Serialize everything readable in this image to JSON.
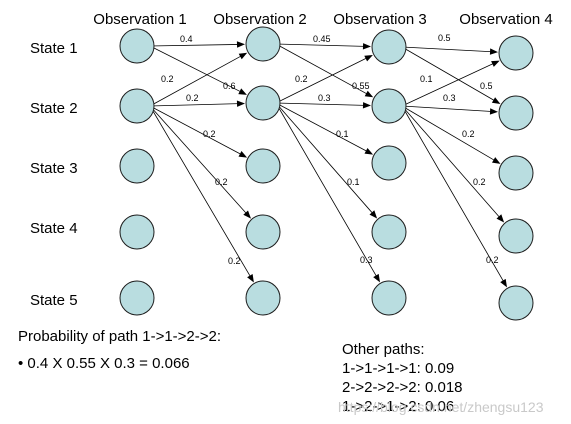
{
  "observations": [
    "Observation 1",
    "Observation 2",
    "Observation 3",
    "Observation 4"
  ],
  "states": [
    "State 1",
    "State 2",
    "State 3",
    "State 4",
    "State 5"
  ],
  "edges": [
    {
      "from": [
        0,
        0
      ],
      "to": [
        1,
        0
      ],
      "label": "0.4"
    },
    {
      "from": [
        0,
        0
      ],
      "to": [
        1,
        1
      ],
      "label": "0.6"
    },
    {
      "from": [
        0,
        1
      ],
      "to": [
        1,
        0
      ],
      "label": "0.2"
    },
    {
      "from": [
        0,
        1
      ],
      "to": [
        1,
        1
      ],
      "label": "0.2"
    },
    {
      "from": [
        0,
        1
      ],
      "to": [
        1,
        2
      ],
      "label": "0.2"
    },
    {
      "from": [
        0,
        1
      ],
      "to": [
        1,
        3
      ],
      "label": "0.2"
    },
    {
      "from": [
        0,
        1
      ],
      "to": [
        1,
        4
      ],
      "label": "0.2"
    },
    {
      "from": [
        1,
        0
      ],
      "to": [
        2,
        0
      ],
      "label": "0.45"
    },
    {
      "from": [
        1,
        0
      ],
      "to": [
        2,
        1
      ],
      "label": "0.55"
    },
    {
      "from": [
        1,
        1
      ],
      "to": [
        2,
        0
      ],
      "label": "0.2"
    },
    {
      "from": [
        1,
        1
      ],
      "to": [
        2,
        1
      ],
      "label": "0.3"
    },
    {
      "from": [
        1,
        1
      ],
      "to": [
        2,
        2
      ],
      "label": "0.1"
    },
    {
      "from": [
        1,
        1
      ],
      "to": [
        2,
        3
      ],
      "label": "0.1"
    },
    {
      "from": [
        1,
        1
      ],
      "to": [
        2,
        4
      ],
      "label": "0.3"
    },
    {
      "from": [
        2,
        0
      ],
      "to": [
        3,
        0
      ],
      "label": "0.5"
    },
    {
      "from": [
        2,
        0
      ],
      "to": [
        3,
        1
      ],
      "label": "0.5"
    },
    {
      "from": [
        2,
        1
      ],
      "to": [
        3,
        0
      ],
      "label": "0.1"
    },
    {
      "from": [
        2,
        1
      ],
      "to": [
        3,
        1
      ],
      "label": "0.3"
    },
    {
      "from": [
        2,
        1
      ],
      "to": [
        3,
        2
      ],
      "label": "0.2"
    },
    {
      "from": [
        2,
        1
      ],
      "to": [
        3,
        3
      ],
      "label": "0.2"
    },
    {
      "from": [
        2,
        1
      ],
      "to": [
        3,
        4
      ],
      "label": "0.2"
    }
  ],
  "probability": {
    "heading": "Probability of path 1->1->2->2:",
    "bullet": "• 0.4 X 0.55 X 0.3 = 0.066"
  },
  "other_paths": {
    "heading": "Other paths:",
    "lines": [
      "1->1->1->1: 0.09",
      "2->2->2->2: 0.018",
      "1->2->1->2: 0.06"
    ]
  },
  "watermark": "https://blog.csdn.net/zhengsu123"
}
